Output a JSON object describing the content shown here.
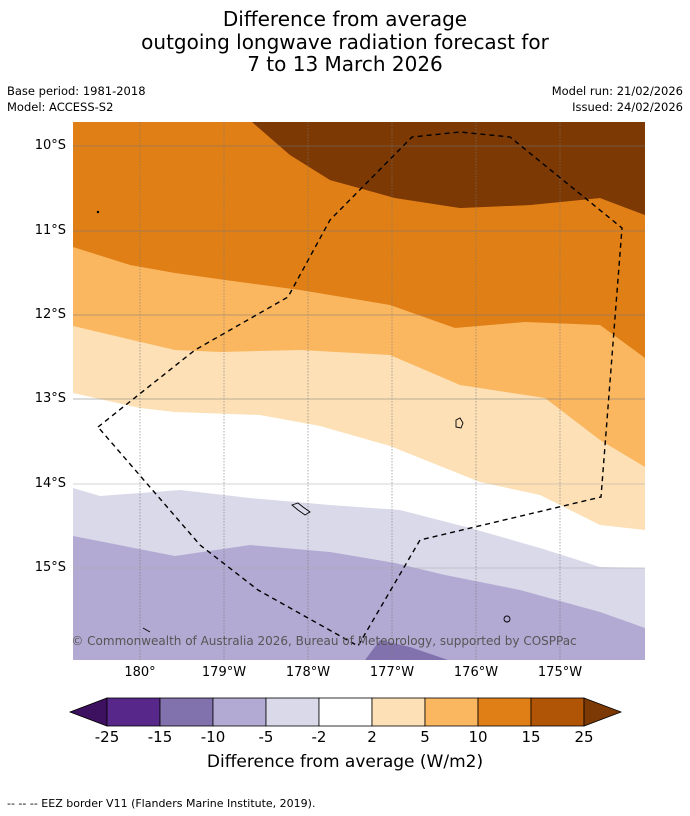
{
  "title": {
    "line1": "Difference from average",
    "line2": "outgoing longwave radiation forecast for",
    "line3": "7 to 13 March 2026"
  },
  "meta": {
    "base_period": "Base period: 1981-2018",
    "model": "Model: ACCESS-S2",
    "model_run": "Model run: 21/02/2026",
    "issued": "Issued: 24/02/2026"
  },
  "axes": {
    "lat_labels": [
      "10°S",
      "11°S",
      "12°S",
      "13°S",
      "14°S",
      "15°S"
    ],
    "lon_labels": [
      "180°",
      "179°W",
      "178°W",
      "177°W",
      "176°W",
      "175°W"
    ]
  },
  "map": {
    "copyright": "© Commonwealth of Australia 2026, Bureau of Meteorology, supported by COSPPac",
    "boundary_style": "dashed black EEZ polygon"
  },
  "colorbar": {
    "label": "Difference from average (W/m2)",
    "ticks": [
      "-25",
      "-15",
      "-10",
      "-5",
      "-2",
      "2",
      "5",
      "10",
      "15",
      "25"
    ],
    "colors": [
      "#3d1060",
      "#57278a",
      "#8171ac",
      "#b2aad3",
      "#d9d9ea",
      "#ffffff",
      "#fde0b5",
      "#fab760",
      "#e07f16",
      "#b05406",
      "#7c3904"
    ]
  },
  "footer": {
    "legend": "--  --  -- EEZ border V11 (Flanders Marine Institute, 2019)."
  }
}
